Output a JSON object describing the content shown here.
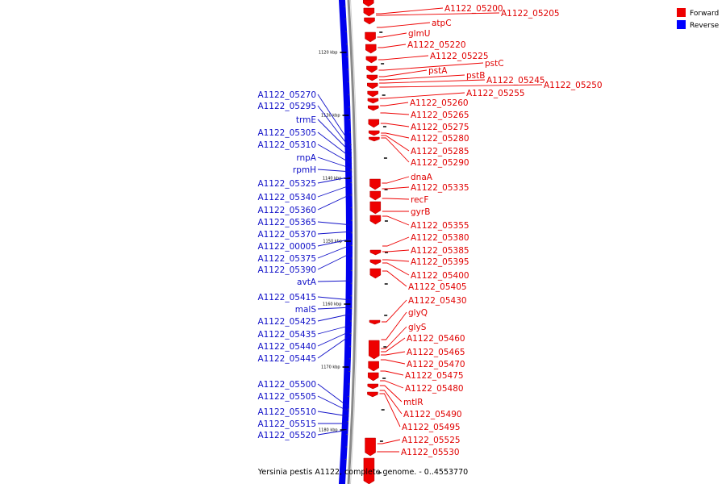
{
  "legend": {
    "forward": {
      "label": "Forward",
      "color": "#ee0000"
    },
    "reverse": {
      "label": "Reverse",
      "color": "#0000ff"
    }
  },
  "caption": "Yersinia pestis A1122, complete genome. - 0..4553770",
  "ticks": [
    "1120 kbp",
    "1130 kbp",
    "1140 kbp",
    "1150 kbp",
    "1160 kbp",
    "1170 kbp",
    "1180 kbp"
  ],
  "forward_genes": [
    "A1122_05200",
    "A1122_05205",
    "atpC",
    "glmU",
    "A1122_05220",
    "A1122_05225",
    "pstC",
    "pstA",
    "pstB",
    "A1122_05245",
    "A1122_05250",
    "A1122_05255",
    "A1122_05260",
    "A1122_05265",
    "A1122_05275",
    "A1122_05280",
    "A1122_05285",
    "A1122_05290",
    "dnaA",
    "A1122_05335",
    "recF",
    "gyrB",
    "A1122_05355",
    "A1122_05380",
    "A1122_05385",
    "A1122_05395",
    "A1122_05400",
    "A1122_05405",
    "A1122_05430",
    "glyQ",
    "glyS",
    "A1122_05460",
    "A1122_05465",
    "A1122_05470",
    "A1122_05475",
    "A1122_05480",
    "mtlR",
    "A1122_05490",
    "A1122_05495",
    "A1122_05525",
    "A1122_05530"
  ],
  "reverse_genes": [
    "A1122_05270",
    "A1122_05295",
    "trmE",
    "A1122_05305",
    "A1122_05310",
    "rnpA",
    "rpmH",
    "A1122_05325",
    "A1122_05340",
    "A1122_05360",
    "A1122_05365",
    "A1122_05370",
    "A1122_00005",
    "A1122_05375",
    "A1122_05390",
    "avtA",
    "A1122_05415",
    "malS",
    "A1122_05425",
    "A1122_05435",
    "A1122_05440",
    "A1122_05445",
    "A1122_05500",
    "A1122_05505",
    "A1122_05510",
    "A1122_05515",
    "A1122_05520"
  ]
}
